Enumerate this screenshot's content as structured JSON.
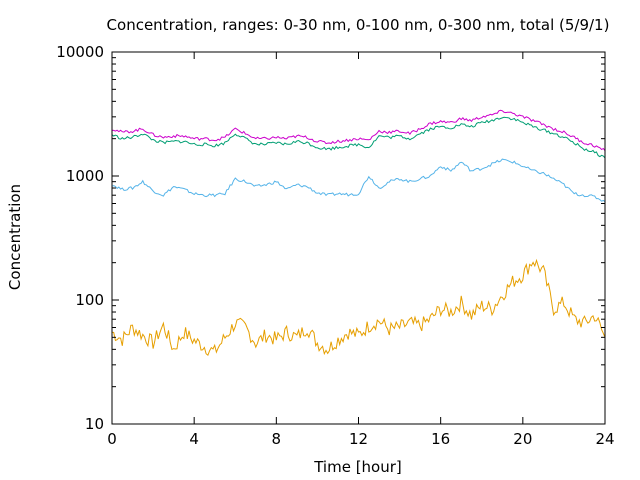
{
  "chart_data": {
    "type": "line",
    "title": "Concentration, ranges: 0-30 nm, 0-100 nm, 0-300 nm, total (5/9/1)",
    "xlabel": "Time [hour]",
    "ylabel": "Concentration",
    "xlim": [
      0,
      24
    ],
    "ylim": [
      10,
      10000
    ],
    "yscale": "log",
    "grid": false,
    "legend": "none",
    "x_ticks": [
      {
        "value": 0,
        "label": "0"
      },
      {
        "value": 4,
        "label": "4"
      },
      {
        "value": 8,
        "label": "8"
      },
      {
        "value": 12,
        "label": "12"
      },
      {
        "value": 16,
        "label": "16"
      },
      {
        "value": 20,
        "label": "20"
      },
      {
        "value": 24,
        "label": "24"
      }
    ],
    "y_ticks": [
      {
        "value": 10,
        "label": "10"
      },
      {
        "value": 100,
        "label": "100"
      },
      {
        "value": 1000,
        "label": "1000"
      },
      {
        "value": 10000,
        "label": "10000"
      }
    ],
    "x": [
      0,
      0.5,
      1,
      1.5,
      2,
      2.5,
      3,
      3.5,
      4,
      4.5,
      5,
      5.5,
      6,
      6.5,
      7,
      7.5,
      8,
      8.5,
      9,
      9.5,
      10,
      10.5,
      11,
      11.5,
      12,
      12.5,
      13,
      13.5,
      14,
      14.5,
      15,
      15.5,
      16,
      16.5,
      17,
      17.5,
      18,
      18.5,
      19,
      19.5,
      20,
      20.5,
      21,
      21.5,
      22,
      22.5,
      23,
      23.5,
      24
    ],
    "series": [
      {
        "color": "#e69f00",
        "values": [
          55,
          48,
          60,
          52,
          45,
          62,
          40,
          55,
          47,
          42,
          38,
          50,
          65,
          60,
          45,
          52,
          48,
          55,
          50,
          60,
          45,
          40,
          48,
          55,
          52,
          62,
          68,
          58,
          60,
          65,
          62,
          70,
          85,
          80,
          95,
          75,
          90,
          85,
          110,
          140,
          160,
          210,
          170,
          85,
          95,
          70,
          65,
          75,
          50
        ]
      },
      {
        "color": "#56b4e9",
        "values": [
          850,
          780,
          800,
          900,
          760,
          700,
          820,
          780,
          720,
          700,
          700,
          720,
          950,
          900,
          820,
          850,
          900,
          780,
          850,
          820,
          730,
          700,
          720,
          710,
          720,
          1000,
          800,
          900,
          950,
          900,
          950,
          1000,
          1200,
          1100,
          1300,
          1100,
          1150,
          1250,
          1350,
          1300,
          1200,
          1100,
          1050,
          950,
          850,
          720,
          700,
          680,
          620
        ]
      },
      {
        "color": "#009e73",
        "values": [
          2150,
          2000,
          2050,
          2200,
          1950,
          1850,
          1900,
          1900,
          1800,
          1800,
          1750,
          1850,
          2200,
          2000,
          1800,
          1800,
          1850,
          1800,
          1900,
          1850,
          1700,
          1650,
          1700,
          1750,
          1800,
          1700,
          2100,
          2050,
          2100,
          2000,
          2200,
          2400,
          2500,
          2450,
          2600,
          2500,
          2700,
          2800,
          3000,
          2900,
          2700,
          2500,
          2350,
          2200,
          2050,
          1850,
          1650,
          1550,
          1400
        ]
      },
      {
        "color": "#cc00cc",
        "values": [
          2400,
          2250,
          2300,
          2400,
          2150,
          2050,
          2100,
          2100,
          2000,
          2000,
          1950,
          2050,
          2400,
          2200,
          2000,
          2000,
          2050,
          2000,
          2100,
          2050,
          1900,
          1850,
          1900,
          1950,
          2000,
          1950,
          2300,
          2250,
          2300,
          2200,
          2400,
          2650,
          2750,
          2700,
          2900,
          2800,
          3000,
          3100,
          3350,
          3200,
          3000,
          2800,
          2600,
          2400,
          2250,
          2050,
          1850,
          1750,
          1600
        ]
      }
    ]
  }
}
